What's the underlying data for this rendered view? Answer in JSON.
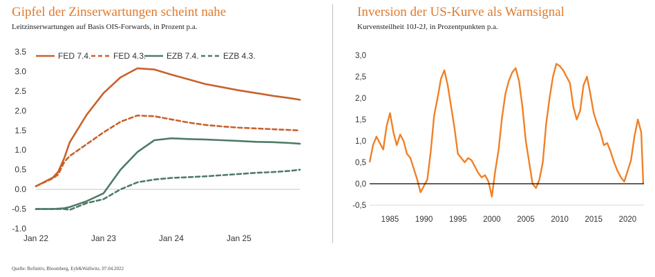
{
  "left": {
    "title": "Gipfel der Zinserwartungen scheint nahe",
    "subtitle": "Leitzinserwartungen auf Basis OIS-Forwards, in Prozent p.a."
  },
  "right": {
    "title": "Inversion der US-Kurve als Warnsignal",
    "subtitle": "Kurvensteilheit 10J-2J, in Prozentpunkten p.a."
  },
  "source": "Quelle: Refinitiv, Bloomberg, Eyb&Wallwitz, 07.04.2022",
  "colors": {
    "orange": "#c8612a",
    "green": "#4e7a66",
    "title_orange": "#e07a2c",
    "curve_orange": "#f08026"
  },
  "chart_data": [
    {
      "type": "line",
      "ylim": [
        -1.0,
        3.5
      ],
      "y_ticks": [
        "3.5",
        "3.0",
        "2.5",
        "2.0",
        "1.5",
        "1.0",
        "0.5",
        "0.0",
        "-0.5",
        "-1.0"
      ],
      "x_ticks": [
        "Jan 22",
        "Jan 23",
        "Jan 24",
        "Jan 25"
      ],
      "x": [
        0.0,
        0.25,
        0.33,
        0.42,
        0.5,
        0.75,
        1.0,
        1.25,
        1.5,
        1.75,
        2.0,
        2.25,
        2.5,
        2.75,
        3.0,
        3.25,
        3.5,
        3.75,
        3.9
      ],
      "legend_position": "top",
      "series": [
        {
          "name": "FED 7.4.",
          "style": "solid",
          "color": "#c8612a",
          "values": [
            0.08,
            0.3,
            0.45,
            0.8,
            1.2,
            1.9,
            2.45,
            2.85,
            3.08,
            3.05,
            2.92,
            2.8,
            2.68,
            2.6,
            2.52,
            2.45,
            2.38,
            2.32,
            2.28
          ]
        },
        {
          "name": "FED 4.3.",
          "style": "dashed",
          "color": "#c8612a",
          "values": [
            0.08,
            0.28,
            0.38,
            0.7,
            0.85,
            1.15,
            1.45,
            1.72,
            1.88,
            1.86,
            1.78,
            1.7,
            1.64,
            1.6,
            1.57,
            1.55,
            1.53,
            1.51,
            1.5
          ]
        },
        {
          "name": "EZB 7.4.",
          "style": "solid",
          "color": "#4e7a66",
          "values": [
            -0.5,
            -0.5,
            -0.49,
            -0.48,
            -0.45,
            -0.3,
            -0.1,
            0.5,
            0.95,
            1.25,
            1.3,
            1.28,
            1.27,
            1.25,
            1.23,
            1.21,
            1.2,
            1.18,
            1.16
          ]
        },
        {
          "name": "EZB 4.3.",
          "style": "dashed",
          "color": "#4e7a66",
          "values": [
            -0.5,
            -0.5,
            -0.5,
            -0.5,
            -0.52,
            -0.35,
            -0.25,
            0.0,
            0.18,
            0.25,
            0.29,
            0.31,
            0.33,
            0.36,
            0.39,
            0.42,
            0.44,
            0.47,
            0.5
          ]
        }
      ]
    },
    {
      "type": "line",
      "ylim": [
        -0.5,
        3.0
      ],
      "y_ticks": [
        "3,0",
        "2,5",
        "2,0",
        "1,5",
        "1,0",
        "0,5",
        "0,0",
        "-0,5"
      ],
      "x_ticks": [
        "1985",
        "1990",
        "1995",
        "2000",
        "2005",
        "2010",
        "2015",
        "2020"
      ],
      "series": [
        {
          "name": "",
          "color": "#f08026",
          "x": [
            1982.0,
            1982.5,
            1983.0,
            1983.5,
            1984.0,
            1984.5,
            1985.0,
            1985.5,
            1986.0,
            1986.5,
            1987.0,
            1987.5,
            1988.0,
            1988.5,
            1989.0,
            1989.5,
            1990.0,
            1990.5,
            1991.0,
            1991.5,
            1992.0,
            1992.5,
            1993.0,
            1993.5,
            1994.0,
            1994.5,
            1995.0,
            1995.5,
            1996.0,
            1996.5,
            1997.0,
            1997.5,
            1998.0,
            1998.5,
            1999.0,
            1999.5,
            2000.0,
            2000.5,
            2001.0,
            2001.5,
            2002.0,
            2002.5,
            2003.0,
            2003.5,
            2004.0,
            2004.5,
            2005.0,
            2005.5,
            2006.0,
            2006.5,
            2007.0,
            2007.5,
            2008.0,
            2008.5,
            2009.0,
            2009.5,
            2010.0,
            2010.5,
            2011.0,
            2011.5,
            2012.0,
            2012.5,
            2013.0,
            2013.5,
            2014.0,
            2014.5,
            2015.0,
            2015.5,
            2016.0,
            2016.5,
            2017.0,
            2017.5,
            2018.0,
            2018.5,
            2019.0,
            2019.5,
            2020.0,
            2020.5,
            2021.0,
            2021.5,
            2022.0,
            2022.3
          ],
          "values": [
            0.5,
            0.9,
            1.1,
            0.95,
            0.8,
            1.35,
            1.65,
            1.2,
            0.9,
            1.15,
            1.0,
            0.7,
            0.6,
            0.35,
            0.1,
            -0.2,
            -0.05,
            0.1,
            0.75,
            1.6,
            2.0,
            2.45,
            2.65,
            2.3,
            1.8,
            1.3,
            0.7,
            0.6,
            0.5,
            0.6,
            0.55,
            0.4,
            0.25,
            0.15,
            0.2,
            0.05,
            -0.3,
            0.3,
            0.8,
            1.55,
            2.1,
            2.4,
            2.6,
            2.7,
            2.4,
            1.8,
            1.0,
            0.5,
            0.0,
            -0.1,
            0.1,
            0.5,
            1.4,
            2.0,
            2.5,
            2.8,
            2.75,
            2.65,
            2.5,
            2.35,
            1.8,
            1.5,
            1.7,
            2.3,
            2.5,
            2.1,
            1.65,
            1.4,
            1.2,
            0.9,
            0.95,
            0.75,
            0.5,
            0.3,
            0.15,
            0.05,
            0.3,
            0.55,
            1.1,
            1.5,
            1.2,
            0.0
          ]
        }
      ]
    }
  ]
}
